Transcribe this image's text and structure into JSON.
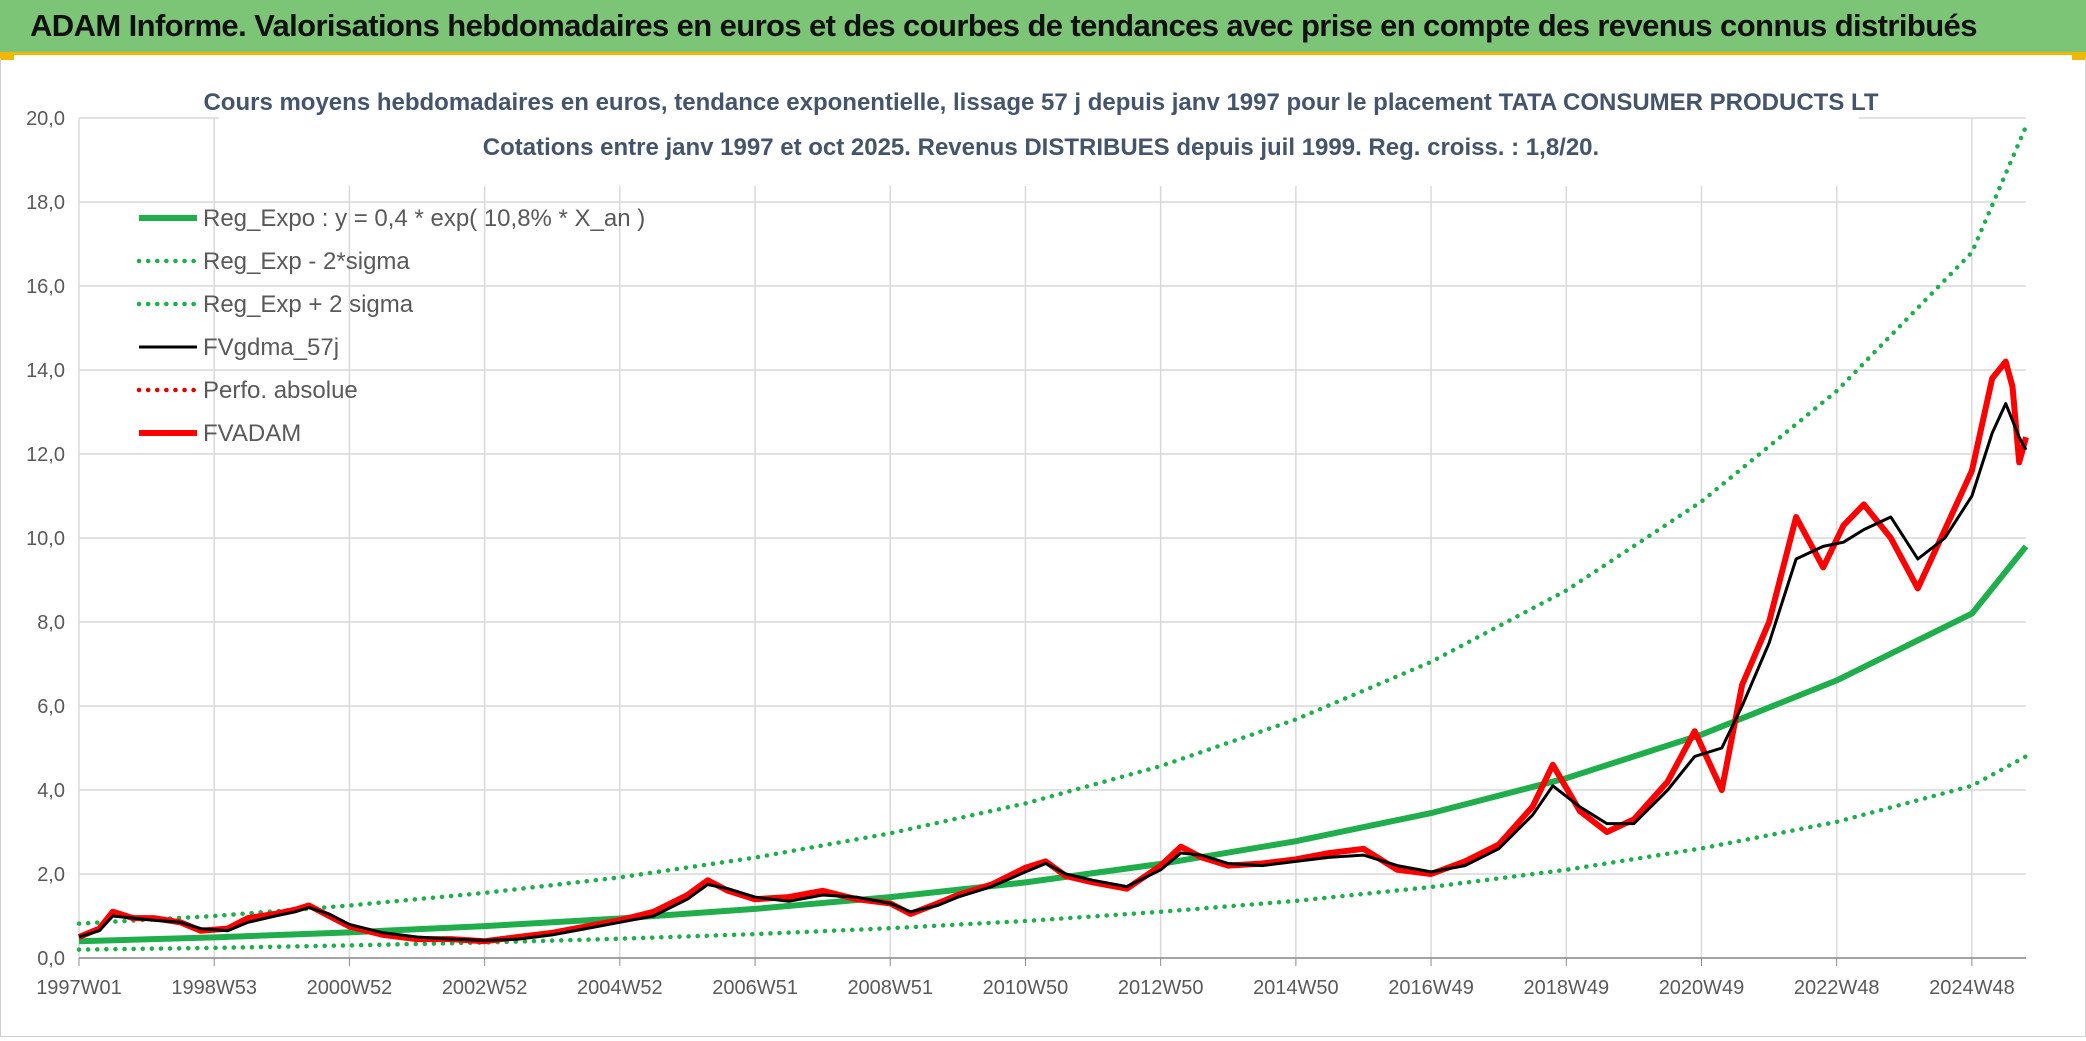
{
  "banner": {
    "title": "ADAM Informe. Valorisations hebdomadaires en euros et des courbes de tendances avec prise en compte des revenus connus distribués"
  },
  "colors": {
    "banner_bg": "#7cc576",
    "accent": "#f2b705",
    "reg_expo": "#1fae4b",
    "sigma": "#1fae4b",
    "fvgdma": "#000000",
    "perfo": "#e00000",
    "fvadam": "#ff0000"
  },
  "chart_data": {
    "type": "line",
    "title": "Cours moyens hebdomadaires en euros, tendance exponentielle, lissage 57 j depuis janv 1997 pour le placement TATA CONSUMER PRODUCTS LT",
    "subtitle": "Cotations entre janv 1997 et oct 2025. Revenus DISTRIBUES depuis juil 1999. Reg. croiss. : 1,8/20.",
    "xlabel": "",
    "ylabel": "",
    "ylim": [
      0,
      20
    ],
    "xlim": [
      1997.0,
      2025.8
    ],
    "grid": true,
    "legend_position": "top-left",
    "y_ticks": [
      "0,0",
      "2,0",
      "4,0",
      "6,0",
      "8,0",
      "10,0",
      "12,0",
      "14,0",
      "16,0",
      "18,0",
      "20,0"
    ],
    "x_ticks": [
      {
        "label": "1997W01",
        "x": 1997.0
      },
      {
        "label": "1998W53",
        "x": 1999.0
      },
      {
        "label": "2000W52",
        "x": 2001.0
      },
      {
        "label": "2002W52",
        "x": 2003.0
      },
      {
        "label": "2004W52",
        "x": 2005.0
      },
      {
        "label": "2006W51",
        "x": 2007.0
      },
      {
        "label": "2008W51",
        "x": 2009.0
      },
      {
        "label": "2010W50",
        "x": 2011.0
      },
      {
        "label": "2012W50",
        "x": 2013.0
      },
      {
        "label": "2014W50",
        "x": 2015.0
      },
      {
        "label": "2016W49",
        "x": 2017.0
      },
      {
        "label": "2018W49",
        "x": 2019.0
      },
      {
        "label": "2020W49",
        "x": 2021.0
      },
      {
        "label": "2022W48",
        "x": 2023.0
      },
      {
        "label": "2024W48",
        "x": 2025.0
      }
    ],
    "series": [
      {
        "name": "Reg_Expo : y = 0,4 * exp( 10,8% *  X_an )",
        "style": "solid-thick",
        "color": "#1fae4b",
        "points": [
          [
            1997.0,
            0.4
          ],
          [
            1999.0,
            0.49
          ],
          [
            2001.0,
            0.61
          ],
          [
            2003.0,
            0.76
          ],
          [
            2005.0,
            0.94
          ],
          [
            2007.0,
            1.17
          ],
          [
            2009.0,
            1.45
          ],
          [
            2011.0,
            1.8
          ],
          [
            2013.0,
            2.24
          ],
          [
            2015.0,
            2.78
          ],
          [
            2017.0,
            3.45
          ],
          [
            2019.0,
            4.28
          ],
          [
            2021.0,
            5.32
          ],
          [
            2023.0,
            6.61
          ],
          [
            2025.0,
            8.2
          ],
          [
            2025.8,
            9.8
          ]
        ]
      },
      {
        "name": "Reg_Exp - 2*sigma",
        "style": "dotted",
        "color": "#1fae4b",
        "points": [
          [
            1997.0,
            0.2
          ],
          [
            1999.0,
            0.24
          ],
          [
            2001.0,
            0.3
          ],
          [
            2003.0,
            0.37
          ],
          [
            2005.0,
            0.46
          ],
          [
            2007.0,
            0.57
          ],
          [
            2009.0,
            0.71
          ],
          [
            2011.0,
            0.88
          ],
          [
            2013.0,
            1.1
          ],
          [
            2015.0,
            1.36
          ],
          [
            2017.0,
            1.69
          ],
          [
            2019.0,
            2.1
          ],
          [
            2021.0,
            2.61
          ],
          [
            2023.0,
            3.24
          ],
          [
            2025.0,
            4.1
          ],
          [
            2025.8,
            4.8
          ]
        ]
      },
      {
        "name": "Reg_Exp + 2 sigma",
        "style": "dotted",
        "color": "#1fae4b",
        "points": [
          [
            1997.0,
            0.82
          ],
          [
            1999.0,
            1.0
          ],
          [
            2001.0,
            1.25
          ],
          [
            2003.0,
            1.55
          ],
          [
            2005.0,
            1.92
          ],
          [
            2007.0,
            2.39
          ],
          [
            2009.0,
            2.97
          ],
          [
            2011.0,
            3.68
          ],
          [
            2013.0,
            4.57
          ],
          [
            2015.0,
            5.68
          ],
          [
            2017.0,
            7.05
          ],
          [
            2019.0,
            8.75
          ],
          [
            2021.0,
            10.87
          ],
          [
            2023.0,
            13.5
          ],
          [
            2025.0,
            16.8
          ],
          [
            2025.8,
            19.8
          ]
        ]
      },
      {
        "name": "FVgdma_57j",
        "style": "solid",
        "color": "#000000",
        "points": [
          [
            1997.0,
            0.5
          ],
          [
            1997.3,
            0.65
          ],
          [
            1997.5,
            1.0
          ],
          [
            1997.8,
            0.95
          ],
          [
            1998.1,
            0.9
          ],
          [
            1998.5,
            0.85
          ],
          [
            1998.8,
            0.7
          ],
          [
            1999.2,
            0.65
          ],
          [
            1999.5,
            0.85
          ],
          [
            1999.9,
            1.0
          ],
          [
            2000.2,
            1.1
          ],
          [
            2000.4,
            1.2
          ],
          [
            2000.7,
            1.05
          ],
          [
            2001.0,
            0.8
          ],
          [
            2001.5,
            0.6
          ],
          [
            2002.0,
            0.5
          ],
          [
            2002.5,
            0.45
          ],
          [
            2003.0,
            0.42
          ],
          [
            2003.5,
            0.45
          ],
          [
            2004.0,
            0.55
          ],
          [
            2004.5,
            0.7
          ],
          [
            2005.0,
            0.85
          ],
          [
            2005.5,
            1.0
          ],
          [
            2006.0,
            1.4
          ],
          [
            2006.3,
            1.75
          ],
          [
            2006.6,
            1.65
          ],
          [
            2007.0,
            1.45
          ],
          [
            2007.5,
            1.35
          ],
          [
            2008.0,
            1.5
          ],
          [
            2008.5,
            1.45
          ],
          [
            2009.0,
            1.3
          ],
          [
            2009.3,
            1.1
          ],
          [
            2009.7,
            1.25
          ],
          [
            2010.0,
            1.45
          ],
          [
            2010.5,
            1.7
          ],
          [
            2011.0,
            2.05
          ],
          [
            2011.3,
            2.25
          ],
          [
            2011.6,
            2.0
          ],
          [
            2012.0,
            1.85
          ],
          [
            2012.5,
            1.7
          ],
          [
            2013.0,
            2.1
          ],
          [
            2013.3,
            2.5
          ],
          [
            2013.6,
            2.45
          ],
          [
            2014.0,
            2.25
          ],
          [
            2014.5,
            2.2
          ],
          [
            2015.0,
            2.3
          ],
          [
            2015.5,
            2.4
          ],
          [
            2016.0,
            2.45
          ],
          [
            2016.5,
            2.2
          ],
          [
            2017.0,
            2.05
          ],
          [
            2017.5,
            2.2
          ],
          [
            2018.0,
            2.6
          ],
          [
            2018.5,
            3.4
          ],
          [
            2018.8,
            4.1
          ],
          [
            2019.2,
            3.6
          ],
          [
            2019.6,
            3.2
          ],
          [
            2020.0,
            3.2
          ],
          [
            2020.5,
            4.0
          ],
          [
            2020.9,
            4.8
          ],
          [
            2021.3,
            5.0
          ],
          [
            2021.6,
            6.0
          ],
          [
            2022.0,
            7.5
          ],
          [
            2022.4,
            9.5
          ],
          [
            2022.8,
            9.8
          ],
          [
            2023.1,
            9.9
          ],
          [
            2023.4,
            10.2
          ],
          [
            2023.8,
            10.5
          ],
          [
            2024.2,
            9.5
          ],
          [
            2024.6,
            10.0
          ],
          [
            2025.0,
            11.0
          ],
          [
            2025.3,
            12.5
          ],
          [
            2025.5,
            13.2
          ],
          [
            2025.7,
            12.4
          ],
          [
            2025.8,
            12.1
          ]
        ]
      },
      {
        "name": "Perfo. absolue",
        "style": "dotted",
        "color": "#e00000",
        "points": []
      },
      {
        "name": "FVADAM",
        "style": "solid-thick",
        "color": "#ff0000",
        "points": [
          [
            1997.0,
            0.5
          ],
          [
            1997.3,
            0.7
          ],
          [
            1997.5,
            1.1
          ],
          [
            1997.8,
            0.95
          ],
          [
            1998.1,
            0.95
          ],
          [
            1998.5,
            0.85
          ],
          [
            1998.8,
            0.65
          ],
          [
            1999.2,
            0.7
          ],
          [
            1999.5,
            0.95
          ],
          [
            1999.9,
            1.05
          ],
          [
            2000.2,
            1.15
          ],
          [
            2000.4,
            1.25
          ],
          [
            2000.7,
            1.0
          ],
          [
            2001.0,
            0.75
          ],
          [
            2001.5,
            0.55
          ],
          [
            2002.0,
            0.45
          ],
          [
            2002.5,
            0.45
          ],
          [
            2003.0,
            0.4
          ],
          [
            2003.5,
            0.5
          ],
          [
            2004.0,
            0.6
          ],
          [
            2004.5,
            0.75
          ],
          [
            2005.0,
            0.9
          ],
          [
            2005.5,
            1.1
          ],
          [
            2006.0,
            1.5
          ],
          [
            2006.3,
            1.85
          ],
          [
            2006.6,
            1.6
          ],
          [
            2007.0,
            1.4
          ],
          [
            2007.5,
            1.45
          ],
          [
            2008.0,
            1.6
          ],
          [
            2008.5,
            1.4
          ],
          [
            2009.0,
            1.3
          ],
          [
            2009.3,
            1.05
          ],
          [
            2009.7,
            1.3
          ],
          [
            2010.0,
            1.5
          ],
          [
            2010.5,
            1.75
          ],
          [
            2011.0,
            2.15
          ],
          [
            2011.3,
            2.3
          ],
          [
            2011.6,
            1.95
          ],
          [
            2012.0,
            1.8
          ],
          [
            2012.5,
            1.65
          ],
          [
            2013.0,
            2.2
          ],
          [
            2013.3,
            2.65
          ],
          [
            2013.6,
            2.4
          ],
          [
            2014.0,
            2.2
          ],
          [
            2014.5,
            2.25
          ],
          [
            2015.0,
            2.35
          ],
          [
            2015.5,
            2.5
          ],
          [
            2016.0,
            2.6
          ],
          [
            2016.5,
            2.1
          ],
          [
            2017.0,
            2.0
          ],
          [
            2017.5,
            2.3
          ],
          [
            2018.0,
            2.7
          ],
          [
            2018.5,
            3.6
          ],
          [
            2018.8,
            4.6
          ],
          [
            2019.2,
            3.5
          ],
          [
            2019.6,
            3.0
          ],
          [
            2020.0,
            3.3
          ],
          [
            2020.5,
            4.2
          ],
          [
            2020.9,
            5.4
          ],
          [
            2021.3,
            4.0
          ],
          [
            2021.6,
            6.5
          ],
          [
            2022.0,
            8.0
          ],
          [
            2022.4,
            10.5
          ],
          [
            2022.8,
            9.3
          ],
          [
            2023.1,
            10.3
          ],
          [
            2023.4,
            10.8
          ],
          [
            2023.8,
            10.0
          ],
          [
            2024.2,
            8.8
          ],
          [
            2024.6,
            10.2
          ],
          [
            2025.0,
            11.6
          ],
          [
            2025.3,
            13.8
          ],
          [
            2025.5,
            14.2
          ],
          [
            2025.6,
            13.6
          ],
          [
            2025.7,
            11.8
          ],
          [
            2025.8,
            12.4
          ]
        ]
      }
    ]
  }
}
